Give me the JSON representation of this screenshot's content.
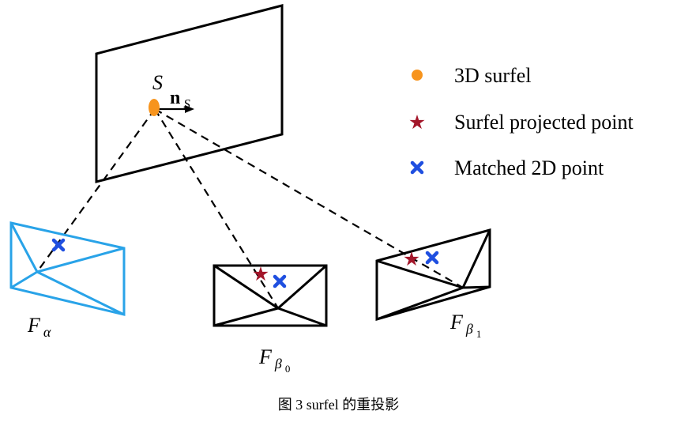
{
  "surfel": {
    "label": "S",
    "normal_label": "n",
    "normal_subscript": "S"
  },
  "legend": [
    {
      "marker": "dot",
      "color": "#f7941d",
      "label": "3D surfel"
    },
    {
      "marker": "star",
      "color": "#a3162a",
      "label": "Surfel projected point"
    },
    {
      "marker": "cross",
      "color": "#1f4fe0",
      "label": "Matched 2D point"
    }
  ],
  "frames": [
    {
      "label": "F",
      "subscript": "α",
      "subsubscript": "",
      "color": "#29a3e8"
    },
    {
      "label": "F",
      "subscript": "β",
      "subsubscript": "0",
      "color": "#000000"
    },
    {
      "label": "F",
      "subscript": "β",
      "subsubscript": "1",
      "color": "#000000"
    }
  ],
  "caption": "图  3 surfel 的重投影"
}
